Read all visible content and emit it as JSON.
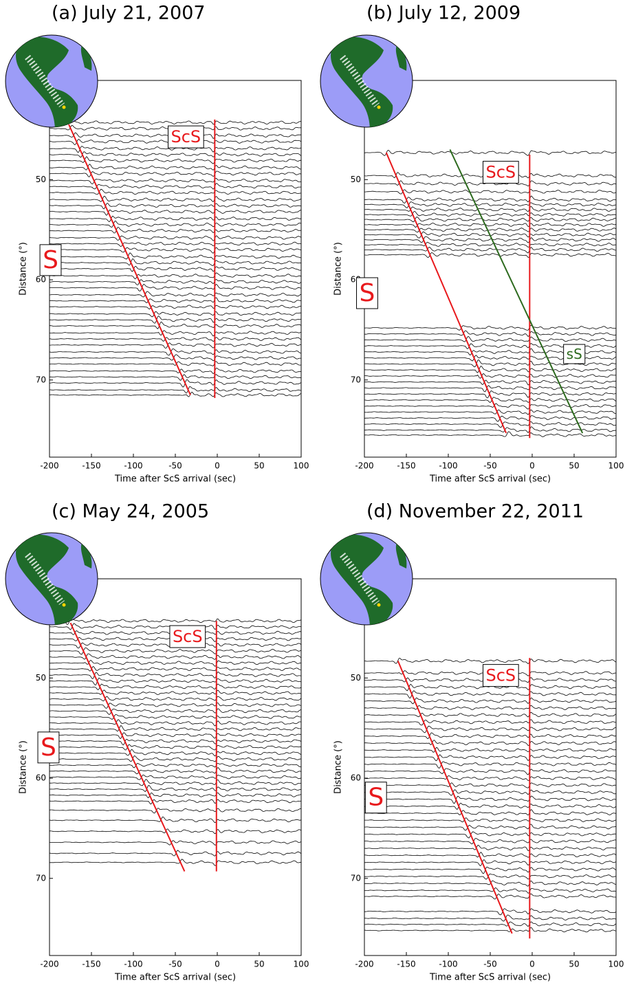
{
  "chart_data": [
    {
      "type": "line",
      "title": "(a) July 21, 2007",
      "x_label": "Time after ScS arrival (sec)",
      "y_label": "Distance (°)",
      "xlim": [
        -200,
        100
      ],
      "ylim": [
        40.1,
        77.7
      ],
      "y_inverted": true,
      "xticks": [
        -200,
        -150,
        -100,
        -50,
        0,
        50,
        100
      ],
      "yticks": [
        50,
        60,
        70
      ],
      "trace_distances": [
        44.3,
        44.9,
        45.6,
        46.2,
        46.9,
        47.5,
        48.1,
        48.8,
        49.4,
        50.1,
        50.7,
        51.3,
        52.0,
        52.6,
        53.2,
        53.9,
        54.5,
        55.1,
        55.8,
        56.4,
        57.0,
        57.7,
        58.3,
        58.9,
        59.6,
        60.2,
        60.8,
        61.5,
        62.1,
        62.7,
        63.4,
        64.0,
        64.6,
        65.3,
        65.9,
        66.5,
        67.2,
        67.8,
        68.4,
        69.1,
        69.7,
        70.3,
        71.0,
        71.5
      ],
      "series": [
        {
          "name": "S",
          "color": "#e8191c",
          "x": [
            -177,
            -32
          ],
          "y": [
            44.5,
            71.5
          ]
        },
        {
          "name": "ScS",
          "color": "#e8191c",
          "x": [
            -3,
            -3
          ],
          "y": [
            44.0,
            71.8
          ]
        }
      ]
    },
    {
      "type": "line",
      "title": "(b) July 12, 2009",
      "x_label": "Time after ScS arrival (sec)",
      "y_label": "Distance (°)",
      "xlim": [
        -200,
        100
      ],
      "ylim": [
        40.1,
        77.7
      ],
      "y_inverted": true,
      "xticks": [
        -200,
        -150,
        -100,
        -50,
        0,
        50,
        100
      ],
      "yticks": [
        50,
        60,
        70
      ],
      "trace_distances": [
        47.3,
        49.6,
        50.4,
        51.2,
        52.0,
        52.5,
        53.0,
        53.5,
        54.0,
        54.5,
        55.0,
        55.5,
        56.0,
        56.5,
        57.0,
        57.5,
        64.8,
        65.4,
        66.0,
        66.6,
        67.2,
        67.8,
        68.4,
        69.0,
        69.6,
        70.2,
        70.8,
        71.4,
        72.0,
        72.6,
        73.2,
        73.8,
        74.4,
        75.0,
        75.5
      ],
      "series": [
        {
          "name": "S",
          "color": "#e8191c",
          "x": [
            -174,
            -31
          ],
          "y": [
            47.3,
            75.3
          ]
        },
        {
          "name": "ScS",
          "color": "#e8191c",
          "x": [
            -3,
            -3
          ],
          "y": [
            47.5,
            75.8
          ]
        },
        {
          "name": "sS",
          "color": "#2d6a1e",
          "x": [
            -98,
            60
          ],
          "y": [
            47.0,
            75.3
          ]
        }
      ]
    },
    {
      "type": "line",
      "title": "(c) May 24, 2005",
      "x_label": "Time after ScS arrival (sec)",
      "y_label": "Distance (°)",
      "xlim": [
        -200,
        100
      ],
      "ylim": [
        40.1,
        77.7
      ],
      "y_inverted": true,
      "xticks": [
        -200,
        -150,
        -100,
        -50,
        0,
        50,
        100
      ],
      "yticks": [
        50,
        60,
        70
      ],
      "trace_distances": [
        44.3,
        44.9,
        45.5,
        46.1,
        46.7,
        47.3,
        47.9,
        48.5,
        49.1,
        49.7,
        50.3,
        50.9,
        51.5,
        52.1,
        52.7,
        53.3,
        53.9,
        54.5,
        55.1,
        55.7,
        56.3,
        56.9,
        57.5,
        58.1,
        58.7,
        59.3,
        59.9,
        60.5,
        61.1,
        61.7,
        62.3,
        63.2,
        64.2,
        65.3,
        66.4,
        67.5,
        68.4
      ],
      "series": [
        {
          "name": "S",
          "color": "#e8191c",
          "x": [
            -175,
            -39
          ],
          "y": [
            44.5,
            69.3
          ]
        },
        {
          "name": "ScS",
          "color": "#e8191c",
          "x": [
            -1,
            -1
          ],
          "y": [
            44.3,
            69.3
          ]
        }
      ]
    },
    {
      "type": "line",
      "title": "(d) November 22, 2011",
      "x_label": "Time after ScS arrival (sec)",
      "y_label": "Distance (°)",
      "xlim": [
        -200,
        100
      ],
      "ylim": [
        40.1,
        77.7
      ],
      "y_inverted": true,
      "xticks": [
        -200,
        -150,
        -100,
        -50,
        0,
        50,
        100
      ],
      "yticks": [
        50,
        60,
        70
      ],
      "trace_distances": [
        48.3,
        49.5,
        50.2,
        50.9,
        51.6,
        52.3,
        53.0,
        53.7,
        54.4,
        55.1,
        55.8,
        56.5,
        57.2,
        57.9,
        58.6,
        59.3,
        60.0,
        60.7,
        61.4,
        62.1,
        62.8,
        63.5,
        64.2,
        64.9,
        65.6,
        66.3,
        67.0,
        67.7,
        68.4,
        69.1,
        69.8,
        70.5,
        71.2,
        71.8,
        73.3,
        74.0,
        74.6,
        75.2
      ],
      "series": [
        {
          "name": "S",
          "color": "#e8191c",
          "x": [
            -160,
            -24
          ],
          "y": [
            48.3,
            75.5
          ]
        },
        {
          "name": "ScS",
          "color": "#e8191c",
          "x": [
            -3,
            -3
          ],
          "y": [
            48.0,
            76.0
          ]
        }
      ]
    }
  ]
}
